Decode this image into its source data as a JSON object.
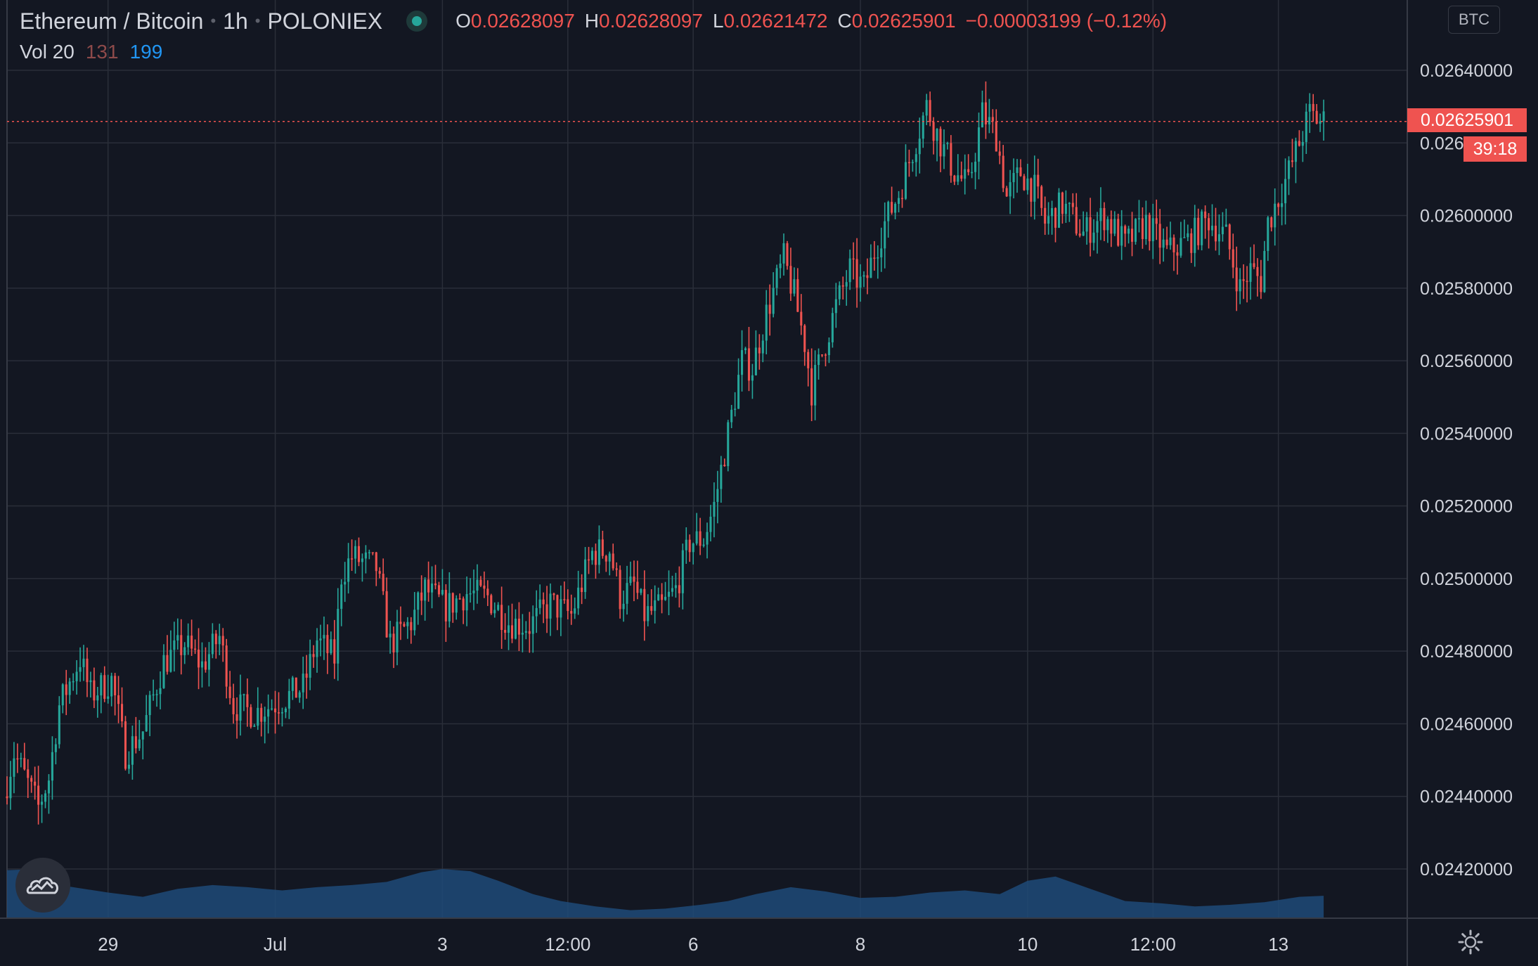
{
  "header": {
    "pair": "Ethereum / Bitcoin",
    "interval": "1h",
    "exchange": "POLONIEX",
    "open_label": "O",
    "open": "0.02628097",
    "high_label": "H",
    "high": "0.02628097",
    "low_label": "L",
    "low": "0.02621472",
    "close_label": "C",
    "close": "0.02625901",
    "change": "−0.00003199 (−0.12%)"
  },
  "volume_legend": {
    "label": "Vol 20",
    "value_a": "131",
    "value_b": "199"
  },
  "currency_badge": "BTC",
  "last_price_label": "0.02625901",
  "countdown": "39:18",
  "colors": {
    "background": "#131722",
    "up": "#26a69a",
    "down": "#ef5350",
    "grid": "#2a2e39",
    "volume_area": "#1e4a78",
    "text": "#d1d4dc"
  },
  "icons": {
    "logo": "cloud-logo-icon",
    "settings": "gear-icon"
  },
  "chart_data": {
    "type": "candlestick",
    "interval": "1h",
    "y_axis": {
      "ticks": [
        "0.02420000",
        "0.02440000",
        "0.02460000",
        "0.02480000",
        "0.02500000",
        "0.02520000",
        "0.02540000",
        "0.02560000",
        "0.02580000",
        "0.02600000",
        "0.02620000",
        "0.02640000"
      ],
      "range": [
        0.0241,
        0.02658
      ]
    },
    "x_axis": {
      "ticks": [
        {
          "label": "29",
          "hour": 0
        },
        {
          "label": "Jul",
          "hour": 48
        },
        {
          "label": "3",
          "hour": 96
        },
        {
          "label": "12:00",
          "hour": 132
        },
        {
          "label": "6",
          "hour": 168
        },
        {
          "label": "8",
          "hour": 216
        },
        {
          "label": "10",
          "hour": 264
        },
        {
          "label": "12:00",
          "hour": 300
        },
        {
          "label": "13",
          "hour": 336
        }
      ],
      "range_hours": [
        -29,
        373
      ]
    },
    "anchors": [
      {
        "h": -29,
        "p": 0.0244
      },
      {
        "h": -26,
        "p": 0.02452
      },
      {
        "h": -19,
        "p": 0.02437
      },
      {
        "h": -16,
        "p": 0.02445
      },
      {
        "h": -13,
        "p": 0.02465
      },
      {
        "h": -7,
        "p": 0.02478
      },
      {
        "h": -4,
        "p": 0.02468
      },
      {
        "h": 2,
        "p": 0.02472
      },
      {
        "h": 6,
        "p": 0.02452
      },
      {
        "h": 11,
        "p": 0.02458
      },
      {
        "h": 17,
        "p": 0.02477
      },
      {
        "h": 23,
        "p": 0.02482
      },
      {
        "h": 28,
        "p": 0.02476
      },
      {
        "h": 33,
        "p": 0.02484
      },
      {
        "h": 37,
        "p": 0.02465
      },
      {
        "h": 43,
        "p": 0.02463
      },
      {
        "h": 50,
        "p": 0.02466
      },
      {
        "h": 57,
        "p": 0.0247
      },
      {
        "h": 61,
        "p": 0.02483
      },
      {
        "h": 66,
        "p": 0.02478
      },
      {
        "h": 68,
        "p": 0.02501
      },
      {
        "h": 71,
        "p": 0.02506
      },
      {
        "h": 78,
        "p": 0.02503
      },
      {
        "h": 82,
        "p": 0.02482
      },
      {
        "h": 88,
        "p": 0.02488
      },
      {
        "h": 92,
        "p": 0.02497
      },
      {
        "h": 98,
        "p": 0.02492
      },
      {
        "h": 104,
        "p": 0.02496
      },
      {
        "h": 110,
        "p": 0.02495
      },
      {
        "h": 116,
        "p": 0.02488
      },
      {
        "h": 122,
        "p": 0.02487
      },
      {
        "h": 128,
        "p": 0.02493
      },
      {
        "h": 134,
        "p": 0.0249
      },
      {
        "h": 140,
        "p": 0.02507
      },
      {
        "h": 145,
        "p": 0.02508
      },
      {
        "h": 148,
        "p": 0.02495
      },
      {
        "h": 152,
        "p": 0.02498
      },
      {
        "h": 155,
        "p": 0.0249
      },
      {
        "h": 160,
        "p": 0.02492
      },
      {
        "h": 164,
        "p": 0.02497
      },
      {
        "h": 168,
        "p": 0.0251
      },
      {
        "h": 172,
        "p": 0.02511
      },
      {
        "h": 175,
        "p": 0.0252
      },
      {
        "h": 179,
        "p": 0.0254
      },
      {
        "h": 183,
        "p": 0.0256
      },
      {
        "h": 186,
        "p": 0.02558
      },
      {
        "h": 190,
        "p": 0.02573
      },
      {
        "h": 195,
        "p": 0.02588
      },
      {
        "h": 198,
        "p": 0.02578
      },
      {
        "h": 201,
        "p": 0.02565
      },
      {
        "h": 203,
        "p": 0.02552
      },
      {
        "h": 206,
        "p": 0.02562
      },
      {
        "h": 210,
        "p": 0.02575
      },
      {
        "h": 214,
        "p": 0.02585
      },
      {
        "h": 218,
        "p": 0.0258
      },
      {
        "h": 221,
        "p": 0.0259
      },
      {
        "h": 224,
        "p": 0.02598
      },
      {
        "h": 228,
        "p": 0.02606
      },
      {
        "h": 232,
        "p": 0.02618
      },
      {
        "h": 236,
        "p": 0.0263
      },
      {
        "h": 240,
        "p": 0.0262
      },
      {
        "h": 244,
        "p": 0.02612
      },
      {
        "h": 248,
        "p": 0.02608
      },
      {
        "h": 252,
        "p": 0.02628
      },
      {
        "h": 256,
        "p": 0.02622
      },
      {
        "h": 259,
        "p": 0.02605
      },
      {
        "h": 263,
        "p": 0.02612
      },
      {
        "h": 267,
        "p": 0.02607
      },
      {
        "h": 270,
        "p": 0.02598
      },
      {
        "h": 275,
        "p": 0.02603
      },
      {
        "h": 281,
        "p": 0.02595
      },
      {
        "h": 287,
        "p": 0.026
      },
      {
        "h": 293,
        "p": 0.02592
      },
      {
        "h": 299,
        "p": 0.02598
      },
      {
        "h": 305,
        "p": 0.0259
      },
      {
        "h": 311,
        "p": 0.02593
      },
      {
        "h": 317,
        "p": 0.02599
      },
      {
        "h": 322,
        "p": 0.02594
      },
      {
        "h": 326,
        "p": 0.0258
      },
      {
        "h": 329,
        "p": 0.02585
      },
      {
        "h": 332,
        "p": 0.02582
      },
      {
        "h": 334,
        "p": 0.02598
      },
      {
        "h": 337,
        "p": 0.02605
      },
      {
        "h": 340,
        "p": 0.02612
      },
      {
        "h": 343,
        "p": 0.0262
      },
      {
        "h": 346,
        "p": 0.02628
      },
      {
        "h": 349,
        "p": 0.02626
      }
    ],
    "volume_area_level": [
      {
        "h": -29,
        "v": 0.9
      },
      {
        "h": -20,
        "v": 0.92
      },
      {
        "h": -12,
        "v": 0.6
      },
      {
        "h": 0,
        "v": 0.48
      },
      {
        "h": 10,
        "v": 0.4
      },
      {
        "h": 20,
        "v": 0.55
      },
      {
        "h": 30,
        "v": 0.62
      },
      {
        "h": 40,
        "v": 0.58
      },
      {
        "h": 50,
        "v": 0.52
      },
      {
        "h": 60,
        "v": 0.58
      },
      {
        "h": 70,
        "v": 0.62
      },
      {
        "h": 80,
        "v": 0.68
      },
      {
        "h": 90,
        "v": 0.86
      },
      {
        "h": 96,
        "v": 0.92
      },
      {
        "h": 104,
        "v": 0.88
      },
      {
        "h": 112,
        "v": 0.7
      },
      {
        "h": 122,
        "v": 0.45
      },
      {
        "h": 130,
        "v": 0.32
      },
      {
        "h": 140,
        "v": 0.22
      },
      {
        "h": 150,
        "v": 0.15
      },
      {
        "h": 160,
        "v": 0.18
      },
      {
        "h": 170,
        "v": 0.25
      },
      {
        "h": 178,
        "v": 0.32
      },
      {
        "h": 186,
        "v": 0.45
      },
      {
        "h": 196,
        "v": 0.58
      },
      {
        "h": 206,
        "v": 0.5
      },
      {
        "h": 216,
        "v": 0.38
      },
      {
        "h": 226,
        "v": 0.4
      },
      {
        "h": 236,
        "v": 0.48
      },
      {
        "h": 246,
        "v": 0.52
      },
      {
        "h": 256,
        "v": 0.45
      },
      {
        "h": 264,
        "v": 0.7
      },
      {
        "h": 272,
        "v": 0.78
      },
      {
        "h": 282,
        "v": 0.55
      },
      {
        "h": 292,
        "v": 0.32
      },
      {
        "h": 302,
        "v": 0.28
      },
      {
        "h": 312,
        "v": 0.22
      },
      {
        "h": 322,
        "v": 0.25
      },
      {
        "h": 332,
        "v": 0.3
      },
      {
        "h": 342,
        "v": 0.4
      },
      {
        "h": 349,
        "v": 0.42
      }
    ]
  }
}
